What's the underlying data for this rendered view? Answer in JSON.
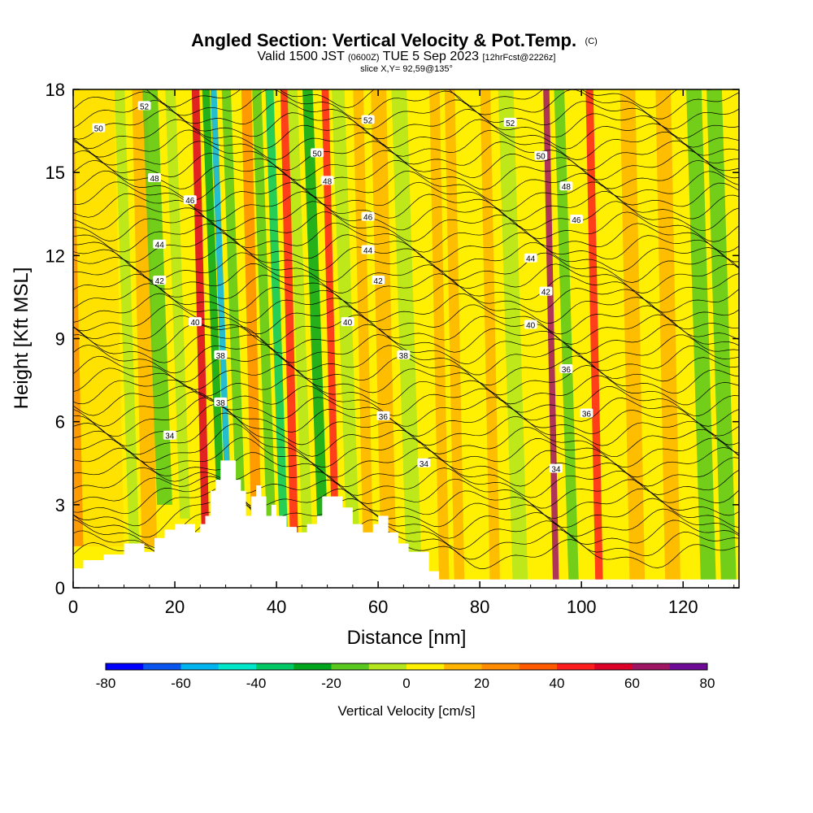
{
  "chart_data": {
    "type": "heatmap",
    "title": "Angled Section: Vertical Velocity & Pot.Temp.",
    "title_unit": "(C)",
    "subtitle": {
      "valid": "Valid 1500 JST",
      "zulu": "(0600Z)",
      "date": "TUE 5 Sep 2023",
      "fcst": "[12hrFcst@2226z]"
    },
    "slice": "slice X,Y= 92,59@135°",
    "xlabel": "Distance [nm]",
    "ylabel": "Height [Kft MSL]",
    "xlim": [
      0,
      131
    ],
    "ylim": [
      0,
      18
    ],
    "xticks": [
      "0",
      "20",
      "40",
      "60",
      "80",
      "100",
      "120"
    ],
    "yticks": [
      "0",
      "3",
      "6",
      "9",
      "12",
      "15",
      "18"
    ],
    "colorbar": {
      "label": "Vertical Velocity [cm/s]",
      "ticks": [
        "-80",
        "-60",
        "-40",
        "-20",
        "0",
        "20",
        "40",
        "60",
        "80"
      ],
      "range": [
        -80,
        80
      ],
      "colors": [
        "#0000ff",
        "#0a55f0",
        "#00b4f0",
        "#00e6c8",
        "#00c864",
        "#00a51e",
        "#5ac81e",
        "#b4e61e",
        "#ffef00",
        "#ffb400",
        "#ff8c00",
        "#ff5a00",
        "#ff1e1e",
        "#dc0028",
        "#a01464",
        "#6e0a96"
      ]
    },
    "velocity_bands": [
      {
        "x": 4,
        "w": 12,
        "min_ft": 1.5,
        "v": 20
      },
      {
        "x": 8,
        "w": 12,
        "min_ft": 1.5,
        "v": 5
      },
      {
        "x": 12,
        "w": 2,
        "min_ft": 1.5,
        "v": -10
      },
      {
        "x": 15,
        "w": 3,
        "min_ft": 1.5,
        "v": 15
      },
      {
        "x": 18,
        "w": 3,
        "min_ft": 3,
        "v": -15
      },
      {
        "x": 22,
        "w": 2,
        "min_ft": 2.5,
        "v": -5
      },
      {
        "x": 26,
        "w": 1.5,
        "min_ft": 2,
        "v": 55
      },
      {
        "x": 29,
        "w": 1.5,
        "min_ft": 3,
        "v": -30
      },
      {
        "x": 30.5,
        "w": 1.2,
        "min_ft": 3,
        "v": -55
      },
      {
        "x": 33,
        "w": 1.8,
        "min_ft": 2.5,
        "v": -20
      },
      {
        "x": 36,
        "w": 2,
        "min_ft": 2.5,
        "v": 20
      },
      {
        "x": 39,
        "w": 1.8,
        "min_ft": 2,
        "v": -20
      },
      {
        "x": 41.5,
        "w": 1.6,
        "min_ft": 1.5,
        "v": -40
      },
      {
        "x": 43.5,
        "w": 1.6,
        "min_ft": 1.5,
        "v": 40
      },
      {
        "x": 46,
        "w": 2,
        "min_ft": 2,
        "v": -10
      },
      {
        "x": 49,
        "w": 2,
        "min_ft": 2.5,
        "v": -25
      },
      {
        "x": 51.5,
        "w": 1.4,
        "min_ft": 2.5,
        "v": 45
      },
      {
        "x": 55,
        "w": 2.5,
        "min_ft": 2,
        "v": -5
      },
      {
        "x": 58,
        "w": 2,
        "min_ft": 1.5,
        "v": 15
      },
      {
        "x": 62,
        "w": 3,
        "min_ft": 1.5,
        "v": 15
      },
      {
        "x": 67,
        "w": 3,
        "min_ft": 1,
        "v": -5
      },
      {
        "x": 73,
        "w": 2,
        "min_ft": 0,
        "v": 18
      },
      {
        "x": 76,
        "w": 2,
        "min_ft": 0,
        "v": 15
      },
      {
        "x": 83,
        "w": 2,
        "min_ft": 0,
        "v": 10
      },
      {
        "x": 88,
        "w": 3,
        "min_ft": 0,
        "v": -8
      },
      {
        "x": 95,
        "w": 1.2,
        "min_ft": 0,
        "v": 60
      },
      {
        "x": 98.5,
        "w": 2,
        "min_ft": 0,
        "v": -20
      },
      {
        "x": 103.5,
        "w": 1.5,
        "min_ft": 0,
        "v": 45
      },
      {
        "x": 111,
        "w": 3,
        "min_ft": 0,
        "v": 15
      },
      {
        "x": 118,
        "w": 3,
        "min_ft": 0,
        "v": 10
      },
      {
        "x": 125,
        "w": 3,
        "min_ft": 0,
        "v": -12
      },
      {
        "x": 129,
        "w": 3,
        "min_ft": 0,
        "v": -20
      }
    ],
    "terrain_kft": [
      [
        0,
        0.7
      ],
      [
        2,
        1.0
      ],
      [
        6,
        1.2
      ],
      [
        10,
        1.6
      ],
      [
        14,
        1.3
      ],
      [
        16,
        1.8
      ],
      [
        18,
        2.1
      ],
      [
        20,
        2.3
      ],
      [
        22,
        2.3
      ],
      [
        24,
        2.0
      ],
      [
        25,
        2.3
      ],
      [
        26,
        2.6
      ],
      [
        27,
        3.5
      ],
      [
        28,
        3.9
      ],
      [
        29,
        4.6
      ],
      [
        31,
        4.6
      ],
      [
        32,
        3.9
      ],
      [
        33,
        3.5
      ],
      [
        34,
        2.6
      ],
      [
        35,
        3.3
      ],
      [
        36,
        3.7
      ],
      [
        37,
        3.3
      ],
      [
        38,
        2.6
      ],
      [
        39,
        3.0
      ],
      [
        40,
        2.6
      ],
      [
        42,
        2.2
      ],
      [
        44,
        2.0
      ],
      [
        46,
        2.3
      ],
      [
        48,
        2.6
      ],
      [
        49,
        3.3
      ],
      [
        52,
        3.3
      ],
      [
        53,
        2.9
      ],
      [
        55,
        2.3
      ],
      [
        57,
        2.0
      ],
      [
        59,
        2.3
      ],
      [
        60,
        2.6
      ],
      [
        62,
        2.0
      ],
      [
        64,
        1.6
      ],
      [
        66,
        1.3
      ],
      [
        70,
        0.6
      ],
      [
        72,
        0.3
      ],
      [
        131,
        0.3
      ]
    ],
    "theta_labels": [
      {
        "text": "52",
        "x": 14,
        "y": 17.4
      },
      {
        "text": "50",
        "x": 5,
        "y": 16.6
      },
      {
        "text": "48",
        "x": 16,
        "y": 14.8
      },
      {
        "text": "46",
        "x": 23,
        "y": 14.0
      },
      {
        "text": "44",
        "x": 17,
        "y": 12.4
      },
      {
        "text": "42",
        "x": 17,
        "y": 11.1
      },
      {
        "text": "40",
        "x": 24,
        "y": 9.6
      },
      {
        "text": "38",
        "x": 29,
        "y": 8.4
      },
      {
        "text": "38",
        "x": 29,
        "y": 6.7
      },
      {
        "text": "34",
        "x": 19,
        "y": 5.5
      },
      {
        "text": "52",
        "x": 58,
        "y": 16.9
      },
      {
        "text": "50",
        "x": 48,
        "y": 15.7
      },
      {
        "text": "48",
        "x": 50,
        "y": 14.7
      },
      {
        "text": "46",
        "x": 58,
        "y": 13.4
      },
      {
        "text": "44",
        "x": 58,
        "y": 12.2
      },
      {
        "text": "42",
        "x": 60,
        "y": 11.1
      },
      {
        "text": "40",
        "x": 54,
        "y": 9.6
      },
      {
        "text": "38",
        "x": 65,
        "y": 8.4
      },
      {
        "text": "36",
        "x": 61,
        "y": 6.2
      },
      {
        "text": "34",
        "x": 69,
        "y": 4.5
      },
      {
        "text": "52",
        "x": 86,
        "y": 16.8
      },
      {
        "text": "50",
        "x": 92,
        "y": 15.6
      },
      {
        "text": "48",
        "x": 97,
        "y": 14.5
      },
      {
        "text": "46",
        "x": 99,
        "y": 13.3
      },
      {
        "text": "44",
        "x": 90,
        "y": 11.9
      },
      {
        "text": "42",
        "x": 93,
        "y": 10.7
      },
      {
        "text": "40",
        "x": 90,
        "y": 9.5
      },
      {
        "text": "36",
        "x": 97,
        "y": 7.9
      },
      {
        "text": "36",
        "x": 101,
        "y": 6.3
      },
      {
        "text": "34",
        "x": 95,
        "y": 4.3
      }
    ]
  }
}
